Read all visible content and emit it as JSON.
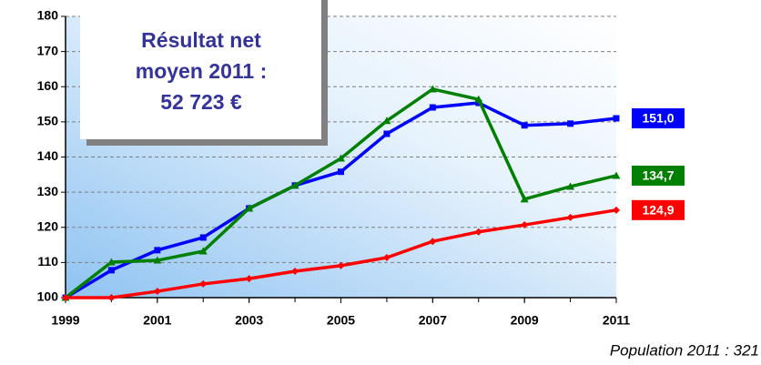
{
  "chart_data": {
    "type": "line",
    "x": [
      1999,
      2000,
      2001,
      2002,
      2003,
      2004,
      2005,
      2006,
      2007,
      2008,
      2009,
      2010,
      2011
    ],
    "xlim": [
      1999,
      2011
    ],
    "xticks": [
      1999,
      2001,
      2003,
      2005,
      2007,
      2009,
      2011
    ],
    "ylim": [
      100,
      180
    ],
    "yticks": [
      100,
      110,
      120,
      130,
      140,
      150,
      160,
      170,
      180
    ],
    "grid": true,
    "series": [
      {
        "color": "#0000ff",
        "marker": "square",
        "values": [
          100,
          107.8,
          113.5,
          117.1,
          125.4,
          131.9,
          135.8,
          146.6,
          154.1,
          155.4,
          149,
          149.5,
          151.0
        ],
        "value_labels": [
          null,
          null,
          null,
          null,
          null,
          null,
          null,
          null,
          null,
          null,
          null,
          null,
          "151,0"
        ]
      },
      {
        "color": "#008000",
        "marker": "triangle",
        "values": [
          100,
          110.1,
          110.6,
          113.2,
          125.4,
          131.9,
          139.6,
          150.3,
          159.3,
          156.4,
          128,
          131.6,
          134.7
        ],
        "value_labels": [
          null,
          null,
          null,
          null,
          null,
          null,
          null,
          null,
          null,
          null,
          null,
          null,
          "134,7"
        ]
      },
      {
        "color": "#ff0000",
        "marker": "diamond",
        "values": [
          100,
          100,
          101.8,
          103.9,
          105.4,
          107.5,
          109.1,
          111.4,
          116,
          118.7,
          120.7,
          122.8,
          124.9
        ],
        "value_labels": [
          null,
          null,
          null,
          null,
          null,
          null,
          null,
          null,
          null,
          null,
          null,
          null,
          "124,9"
        ]
      }
    ],
    "annotation": [
      "Résultat net",
      "moyen 2011 :",
      "52 723 €"
    ],
    "footnote": "Population 2011 : 321"
  }
}
